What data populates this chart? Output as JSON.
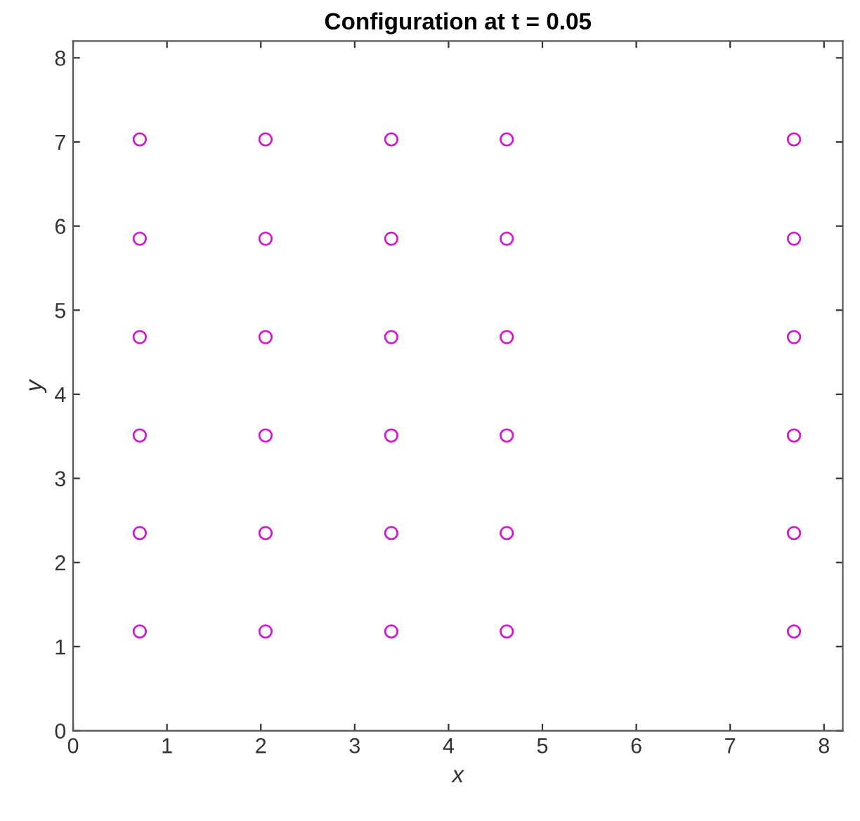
{
  "chart_data": {
    "type": "scatter",
    "title": "Configuration at t = 0.05",
    "xlabel": "x",
    "ylabel": "y",
    "x": [
      0.71,
      2.05,
      3.39,
      4.62,
      7.68,
      0.71,
      2.05,
      3.39,
      4.62,
      7.68,
      0.71,
      2.05,
      3.39,
      4.62,
      7.68,
      0.71,
      2.05,
      3.39,
      4.62,
      7.68,
      0.71,
      2.05,
      3.39,
      4.62,
      7.68,
      0.71,
      2.05,
      3.39,
      4.62,
      7.68
    ],
    "series": [
      {
        "color": "#d21ad2",
        "values": [
          7.03,
          7.03,
          7.03,
          7.03,
          7.03,
          5.85,
          5.85,
          5.85,
          5.85,
          5.85,
          4.68,
          4.68,
          4.68,
          4.68,
          4.68,
          3.51,
          3.51,
          3.51,
          3.51,
          3.51,
          2.35,
          2.35,
          2.35,
          2.35,
          2.35,
          1.18,
          1.18,
          1.18,
          1.18,
          1.18
        ]
      }
    ],
    "xlim": [
      0,
      8.2
    ],
    "ylim": [
      0,
      8.2
    ],
    "xticks": [
      0,
      1,
      2,
      3,
      4,
      5,
      6,
      7,
      8
    ],
    "yticks": [
      0,
      1,
      2,
      3,
      4,
      5,
      6,
      7,
      8
    ],
    "marker": "circle",
    "grid": false,
    "legend": false
  }
}
